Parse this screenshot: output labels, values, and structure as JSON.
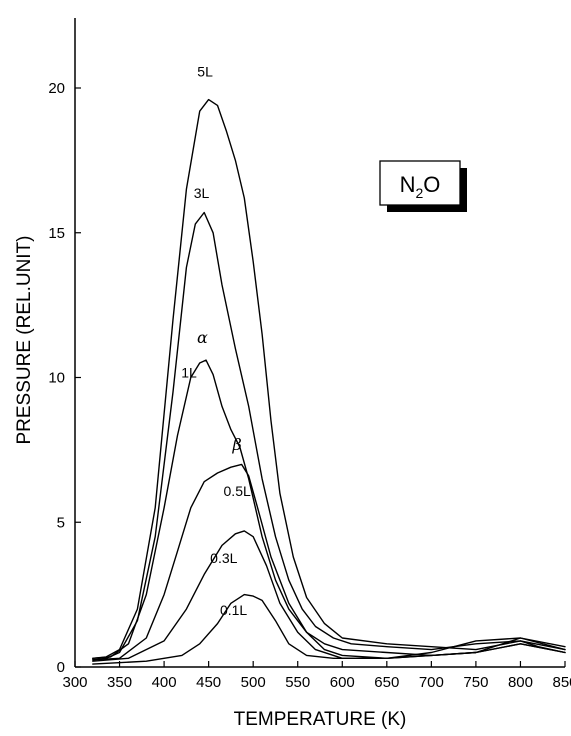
{
  "chart_data": {
    "type": "line",
    "title": "",
    "xlabel": "TEMPERATURE (K)",
    "ylabel": "PRESSURE (REL.UNIT)",
    "xlim": [
      300,
      850
    ],
    "ylim": [
      0,
      22
    ],
    "x_ticks": [
      300,
      350,
      400,
      450,
      500,
      550,
      600,
      650,
      700,
      750,
      800,
      850
    ],
    "y_ticks": [
      0,
      5,
      10,
      15,
      20
    ],
    "grid": false,
    "legend": "none",
    "inset_box": {
      "main": "N",
      "sub": "2",
      "tail": "O"
    },
    "annotations": [
      {
        "text": "α",
        "x": 443,
        "y": 11.2
      },
      {
        "text": "β",
        "x": 482,
        "y": 7.5
      }
    ],
    "series": [
      {
        "name": "5L",
        "label": "5L",
        "label_pos": [
          446,
          20.4
        ],
        "x": [
          320,
          335,
          350,
          370,
          390,
          410,
          425,
          440,
          450,
          460,
          470,
          480,
          490,
          500,
          510,
          520,
          530,
          545,
          560,
          580,
          600,
          650,
          700,
          750,
          800,
          820,
          850
        ],
        "y": [
          0.3,
          0.35,
          0.6,
          2.0,
          5.5,
          12.0,
          16.5,
          19.2,
          19.6,
          19.4,
          18.5,
          17.5,
          16.2,
          14.0,
          11.5,
          8.5,
          6.0,
          3.8,
          2.4,
          1.5,
          1.0,
          0.8,
          0.7,
          0.6,
          0.9,
          0.7,
          0.5
        ]
      },
      {
        "name": "3L",
        "label": "3L",
        "label_pos": [
          442,
          16.2
        ],
        "x": [
          320,
          335,
          350,
          370,
          390,
          410,
          425,
          435,
          445,
          455,
          465,
          480,
          495,
          510,
          525,
          540,
          555,
          570,
          590,
          610,
          650,
          700,
          750,
          800,
          850
        ],
        "y": [
          0.25,
          0.3,
          0.5,
          1.6,
          4.5,
          9.5,
          13.8,
          15.3,
          15.7,
          15.0,
          13.2,
          11.0,
          9.0,
          6.5,
          4.5,
          3.0,
          2.0,
          1.4,
          1.0,
          0.8,
          0.7,
          0.6,
          0.8,
          0.9,
          0.6
        ]
      },
      {
        "name": "1L",
        "label": "1L",
        "label_pos": [
          428,
          10.0
        ],
        "x": [
          320,
          340,
          360,
          380,
          400,
          415,
          430,
          440,
          447,
          455,
          465,
          475,
          485,
          495,
          510,
          525,
          540,
          560,
          580,
          600,
          650,
          700,
          750,
          800,
          850
        ],
        "y": [
          0.3,
          0.35,
          0.8,
          2.5,
          5.5,
          8.0,
          10.0,
          10.5,
          10.6,
          10.1,
          9.0,
          8.2,
          7.6,
          6.5,
          4.5,
          3.0,
          2.0,
          1.2,
          0.8,
          0.6,
          0.5,
          0.4,
          0.5,
          1.0,
          0.6
        ]
      },
      {
        "name": "0.5L",
        "label": "0.5L",
        "label_pos": [
          482,
          5.9
        ],
        "x": [
          320,
          350,
          380,
          400,
          415,
          430,
          445,
          460,
          475,
          487,
          495,
          505,
          520,
          540,
          560,
          580,
          600,
          650,
          700,
          750,
          800,
          850
        ],
        "y": [
          0.25,
          0.3,
          1.0,
          2.5,
          4.0,
          5.5,
          6.4,
          6.7,
          6.9,
          7.0,
          6.6,
          5.5,
          3.8,
          2.2,
          1.2,
          0.6,
          0.4,
          0.3,
          0.4,
          0.5,
          0.8,
          0.5
        ]
      },
      {
        "name": "0.3L",
        "label": "0.3L",
        "label_pos": [
          467,
          3.6
        ],
        "x": [
          320,
          360,
          400,
          425,
          445,
          465,
          480,
          490,
          500,
          515,
          530,
          550,
          570,
          600,
          650,
          700,
          750,
          800,
          850
        ],
        "y": [
          0.2,
          0.3,
          0.9,
          2.0,
          3.2,
          4.2,
          4.6,
          4.7,
          4.5,
          3.5,
          2.2,
          1.2,
          0.6,
          0.3,
          0.3,
          0.4,
          0.5,
          0.8,
          0.5
        ]
      },
      {
        "name": "0.1L",
        "label": "0.1L",
        "label_pos": [
          478,
          1.8
        ],
        "x": [
          320,
          380,
          420,
          440,
          460,
          475,
          490,
          500,
          510,
          525,
          540,
          560,
          590,
          620,
          650,
          700,
          750,
          800,
          850
        ],
        "y": [
          0.1,
          0.2,
          0.4,
          0.8,
          1.5,
          2.2,
          2.5,
          2.45,
          2.3,
          1.6,
          0.8,
          0.4,
          0.3,
          0.3,
          0.3,
          0.5,
          0.9,
          1.0,
          0.7
        ]
      }
    ]
  }
}
